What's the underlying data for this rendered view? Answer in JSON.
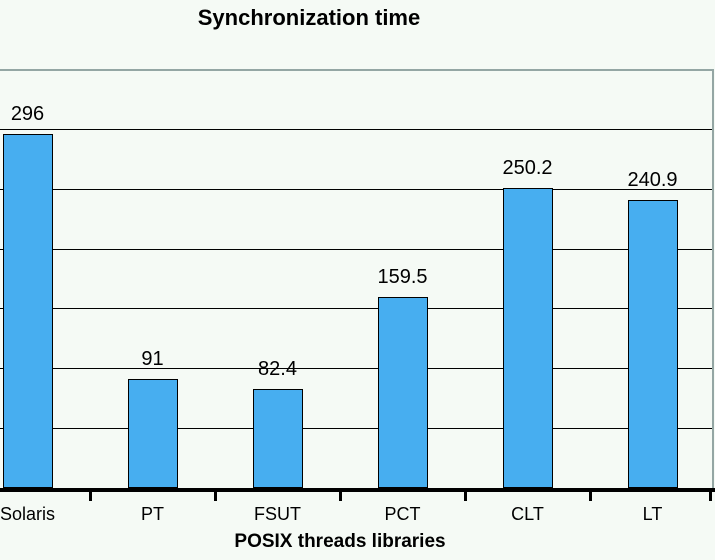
{
  "title": "Synchronization time",
  "x_axis_title": "POSIX threads libraries",
  "chart_data": {
    "type": "bar",
    "title": "Synchronization time",
    "xlabel": "POSIX threads libraries",
    "ylabel": "",
    "categories": [
      "Solaris",
      "PT",
      "FSUT",
      "PCT",
      "CLT",
      "LT"
    ],
    "values": [
      296,
      91,
      82.4,
      159.5,
      250.2,
      240.9
    ],
    "value_labels": [
      "296",
      "91",
      "82.4",
      "159.5",
      "250.2",
      "240.9"
    ],
    "ylim": [
      0,
      350
    ],
    "gridline_interval": 50,
    "grid": true,
    "legend": "none",
    "colors": {
      "bar_fill": "#47AEF0",
      "bar_border": "#000000",
      "gridline": "#000000",
      "axis_line": "#000000",
      "frame_border": "#94A6A4",
      "background": "#F5FAF5",
      "text": "#000000"
    }
  }
}
